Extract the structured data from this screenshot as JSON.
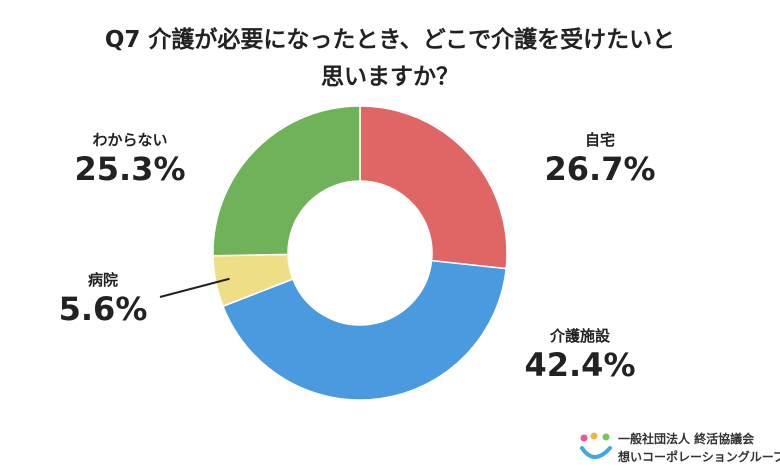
{
  "title_line1": "Q7 介護が必要になったとき、どこで介護を受けたいと",
  "title_line2": "思いますか？",
  "chart_data": {
    "type": "pie",
    "donut": true,
    "categories": [
      "自宅",
      "介護施設",
      "病院",
      "わからない"
    ],
    "values": [
      26.7,
      42.4,
      5.6,
      25.3
    ],
    "value_labels": [
      "26.7%",
      "42.4%",
      "5.6%",
      "25.3%"
    ],
    "colors": [
      "#e06666",
      "#4a9ae0",
      "#eede85",
      "#6fb25a"
    ],
    "unit": "%",
    "legend": "none"
  },
  "logo": {
    "org": "一般社団法人 終活協議会",
    "group": "想いコーポレーショングループ",
    "colors": [
      "#e9569a",
      "#f3b23f",
      "#7cc35a",
      "#3fa9e0"
    ],
    "icon": "people-logo-icon"
  }
}
